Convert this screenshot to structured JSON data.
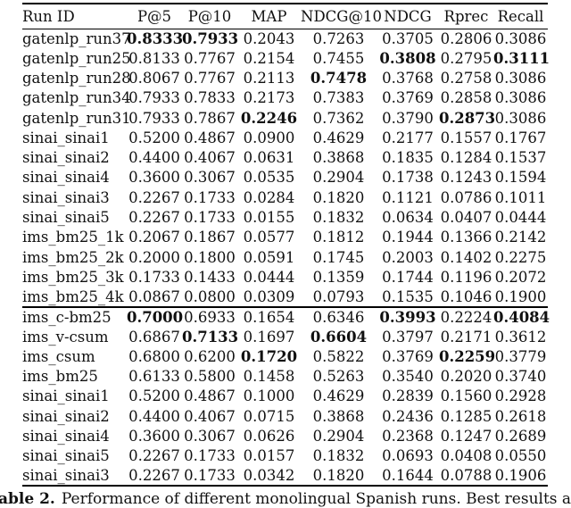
{
  "table": {
    "columns": [
      "Run ID",
      "P@5",
      "P@10",
      "MAP",
      "NDCG@10",
      "NDCG",
      "Rprec",
      "Recall"
    ],
    "sections": [
      {
        "rows": [
          {
            "id": "gatenlp_run37",
            "values": [
              "0.8333",
              "0.7933",
              "0.2043",
              "0.7263",
              "0.3705",
              "0.2806",
              "0.3086"
            ],
            "bold": [
              1,
              1,
              0,
              0,
              0,
              0,
              0
            ]
          },
          {
            "id": "gatenlp_run25",
            "values": [
              "0.8133",
              "0.7767",
              "0.2154",
              "0.7455",
              "0.3808",
              "0.2795",
              "0.3111"
            ],
            "bold": [
              0,
              0,
              0,
              0,
              1,
              0,
              1
            ]
          },
          {
            "id": "gatenlp_run28",
            "values": [
              "0.8067",
              "0.7767",
              "0.2113",
              "0.7478",
              "0.3768",
              "0.2758",
              "0.3086"
            ],
            "bold": [
              0,
              0,
              0,
              1,
              0,
              0,
              0
            ]
          },
          {
            "id": "gatenlp_run34",
            "values": [
              "0.7933",
              "0.7833",
              "0.2173",
              "0.7383",
              "0.3769",
              "0.2858",
              "0.3086"
            ],
            "bold": [
              0,
              0,
              0,
              0,
              0,
              0,
              0
            ]
          },
          {
            "id": "gatenlp_run31",
            "values": [
              "0.7933",
              "0.7867",
              "0.2246",
              "0.7362",
              "0.3790",
              "0.2873",
              "0.3086"
            ],
            "bold": [
              0,
              0,
              1,
              0,
              0,
              1,
              0
            ]
          },
          {
            "id": "sinai_sinai1",
            "values": [
              "0.5200",
              "0.4867",
              "0.0900",
              "0.4629",
              "0.2177",
              "0.1557",
              "0.1767"
            ],
            "bold": [
              0,
              0,
              0,
              0,
              0,
              0,
              0
            ]
          },
          {
            "id": "sinai_sinai2",
            "values": [
              "0.4400",
              "0.4067",
              "0.0631",
              "0.3868",
              "0.1835",
              "0.1284",
              "0.1537"
            ],
            "bold": [
              0,
              0,
              0,
              0,
              0,
              0,
              0
            ]
          },
          {
            "id": "sinai_sinai4",
            "values": [
              "0.3600",
              "0.3067",
              "0.0535",
              "0.2904",
              "0.1738",
              "0.1243",
              "0.1594"
            ],
            "bold": [
              0,
              0,
              0,
              0,
              0,
              0,
              0
            ]
          },
          {
            "id": "sinai_sinai3",
            "values": [
              "0.2267",
              "0.1733",
              "0.0284",
              "0.1820",
              "0.1121",
              "0.0786",
              "0.1011"
            ],
            "bold": [
              0,
              0,
              0,
              0,
              0,
              0,
              0
            ]
          },
          {
            "id": "sinai_sinai5",
            "values": [
              "0.2267",
              "0.1733",
              "0.0155",
              "0.1832",
              "0.0634",
              "0.0407",
              "0.0444"
            ],
            "bold": [
              0,
              0,
              0,
              0,
              0,
              0,
              0
            ]
          },
          {
            "id": "ims_bm25_1k",
            "values": [
              "0.2067",
              "0.1867",
              "0.0577",
              "0.1812",
              "0.1944",
              "0.1366",
              "0.2142"
            ],
            "bold": [
              0,
              0,
              0,
              0,
              0,
              0,
              0
            ]
          },
          {
            "id": "ims_bm25_2k",
            "values": [
              "0.2000",
              "0.1800",
              "0.0591",
              "0.1745",
              "0.2003",
              "0.1402",
              "0.2275"
            ],
            "bold": [
              0,
              0,
              0,
              0,
              0,
              0,
              0
            ]
          },
          {
            "id": "ims_bm25_3k",
            "values": [
              "0.1733",
              "0.1433",
              "0.0444",
              "0.1359",
              "0.1744",
              "0.1196",
              "0.2072"
            ],
            "bold": [
              0,
              0,
              0,
              0,
              0,
              0,
              0
            ]
          },
          {
            "id": "ims_bm25_4k",
            "values": [
              "0.0867",
              "0.0800",
              "0.0309",
              "0.0793",
              "0.1535",
              "0.1046",
              "0.1900"
            ],
            "bold": [
              0,
              0,
              0,
              0,
              0,
              0,
              0
            ]
          }
        ]
      },
      {
        "rows": [
          {
            "id": "ims_c-bm25",
            "values": [
              "0.7000",
              "0.6933",
              "0.1654",
              "0.6346",
              "0.3993",
              "0.2224",
              "0.4084"
            ],
            "bold": [
              1,
              0,
              0,
              0,
              1,
              0,
              1
            ]
          },
          {
            "id": "ims_v-csum",
            "values": [
              "0.6867",
              "0.7133",
              "0.1697",
              "0.6604",
              "0.3797",
              "0.2171",
              "0.3612"
            ],
            "bold": [
              0,
              1,
              0,
              1,
              0,
              0,
              0
            ]
          },
          {
            "id": "ims_csum",
            "values": [
              "0.6800",
              "0.6200",
              "0.1720",
              "0.5822",
              "0.3769",
              "0.2259",
              "0.3779"
            ],
            "bold": [
              0,
              0,
              1,
              0,
              0,
              1,
              0
            ]
          },
          {
            "id": "ims_bm25",
            "values": [
              "0.6133",
              "0.5800",
              "0.1458",
              "0.5263",
              "0.3540",
              "0.2020",
              "0.3740"
            ],
            "bold": [
              0,
              0,
              0,
              0,
              0,
              0,
              0
            ]
          },
          {
            "id": "sinai_sinai1",
            "values": [
              "0.5200",
              "0.4867",
              "0.1000",
              "0.4629",
              "0.2839",
              "0.1560",
              "0.2928"
            ],
            "bold": [
              0,
              0,
              0,
              0,
              0,
              0,
              0
            ]
          },
          {
            "id": "sinai_sinai2",
            "values": [
              "0.4400",
              "0.4067",
              "0.0715",
              "0.3868",
              "0.2436",
              "0.1285",
              "0.2618"
            ],
            "bold": [
              0,
              0,
              0,
              0,
              0,
              0,
              0
            ]
          },
          {
            "id": "sinai_sinai4",
            "values": [
              "0.3600",
              "0.3067",
              "0.0626",
              "0.2904",
              "0.2368",
              "0.1247",
              "0.2689"
            ],
            "bold": [
              0,
              0,
              0,
              0,
              0,
              0,
              0
            ]
          },
          {
            "id": "sinai_sinai5",
            "values": [
              "0.2267",
              "0.1733",
              "0.0157",
              "0.1832",
              "0.0693",
              "0.0408",
              "0.0550"
            ],
            "bold": [
              0,
              0,
              0,
              0,
              0,
              0,
              0
            ]
          },
          {
            "id": "sinai_sinai3",
            "values": [
              "0.2267",
              "0.1733",
              "0.0342",
              "0.1820",
              "0.1644",
              "0.0788",
              "0.1906"
            ],
            "bold": [
              0,
              0,
              0,
              0,
              0,
              0,
              0
            ]
          }
        ]
      }
    ]
  },
  "caption": {
    "label": "able 2.",
    "text": "Performance of different monolingual Spanish runs. Best results are bolde"
  }
}
